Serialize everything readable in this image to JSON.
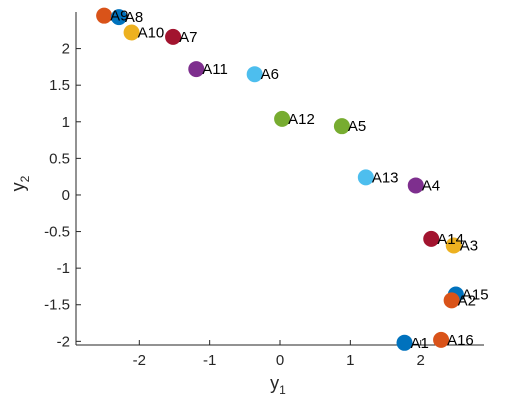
{
  "chart_data": {
    "type": "scatter",
    "title": "",
    "xlabel": "y",
    "xlabel_sub": "1",
    "ylabel": "y",
    "ylabel_sub": "2",
    "xlim": [
      -2.9,
      2.9
    ],
    "ylim": [
      -2.05,
      2.5
    ],
    "xticks": [
      -2,
      -1,
      0,
      1,
      2
    ],
    "xtick_labels": [
      "-2",
      "-1",
      "0",
      "1",
      "2"
    ],
    "yticks": [
      -2,
      -1.5,
      -1,
      -0.5,
      0,
      0.5,
      1,
      1.5,
      2
    ],
    "ytick_labels": [
      "-2",
      "-1.5",
      "-1",
      "-0.5",
      "0",
      "0.5",
      "1",
      "1.5",
      "2"
    ],
    "grid": false,
    "points": [
      {
        "label": "A9",
        "x": -2.5,
        "y": 2.45,
        "color": "#D95319"
      },
      {
        "label": "A8",
        "x": -2.29,
        "y": 2.43,
        "color": "#0072BD"
      },
      {
        "label": "A10",
        "x": -2.11,
        "y": 2.22,
        "color": "#EDB120"
      },
      {
        "label": "A7",
        "x": -1.52,
        "y": 2.16,
        "color": "#A2142F"
      },
      {
        "label": "A11",
        "x": -1.19,
        "y": 1.72,
        "color": "#7E2F8E"
      },
      {
        "label": "A6",
        "x": -0.36,
        "y": 1.65,
        "color": "#4DBEEE"
      },
      {
        "label": "A12",
        "x": 0.03,
        "y": 1.04,
        "color": "#77AC30"
      },
      {
        "label": "A5",
        "x": 0.88,
        "y": 0.94,
        "color": "#77AC30"
      },
      {
        "label": "A13",
        "x": 1.22,
        "y": 0.24,
        "color": "#4DBEEE"
      },
      {
        "label": "A4",
        "x": 1.93,
        "y": 0.13,
        "color": "#7E2F8E"
      },
      {
        "label": "A14",
        "x": 2.15,
        "y": -0.6,
        "color": "#A2142F"
      },
      {
        "label": "A3",
        "x": 2.47,
        "y": -0.69,
        "color": "#EDB120"
      },
      {
        "label": "A15",
        "x": 2.5,
        "y": -1.36,
        "color": "#0072BD"
      },
      {
        "label": "A2",
        "x": 2.44,
        "y": -1.44,
        "color": "#D95319"
      },
      {
        "label": "A16",
        "x": 2.29,
        "y": -1.98,
        "color": "#D95319"
      },
      {
        "label": "A1",
        "x": 1.77,
        "y": -2.02,
        "color": "#0072BD"
      }
    ]
  }
}
